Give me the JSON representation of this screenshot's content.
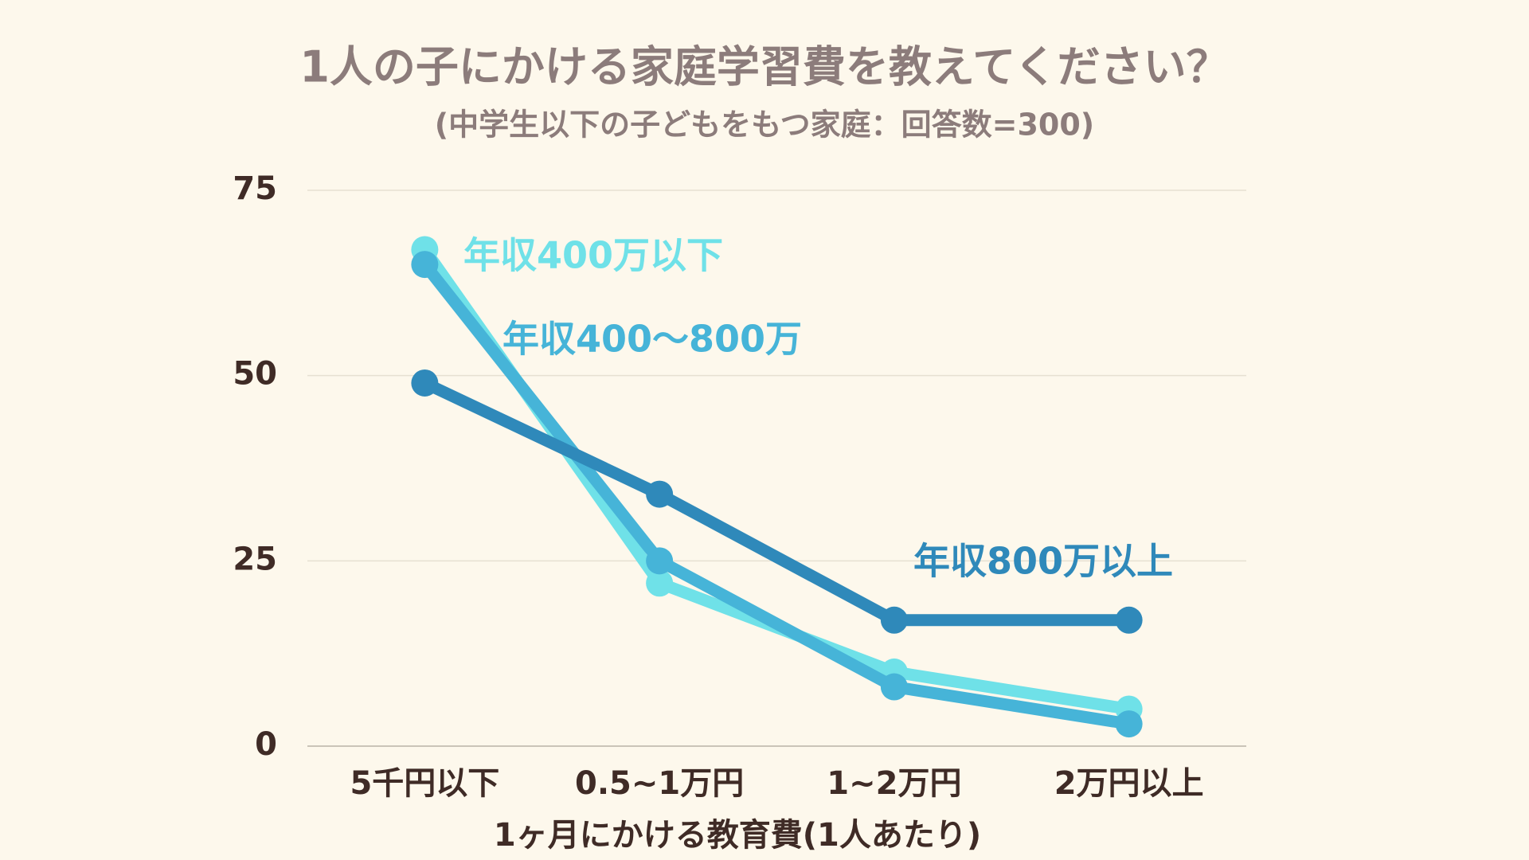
{
  "chart_data": {
    "type": "line",
    "title": "1人の子にかける家庭学習費を教えてください？",
    "subtitle": "(中学生以下の子どもをもつ家庭：回答数=300)",
    "x_label": "1ヶ月にかける教育費(1人あたり)",
    "categories": [
      "5千円以下",
      "0.5~1万円",
      "1~2万円",
      "2万円以上"
    ],
    "series": [
      {
        "name": "年収400万以下",
        "color": "#6fe1e8",
        "values": [
          67,
          22,
          10,
          5
        ]
      },
      {
        "name": "年収400〜800万",
        "color": "#46b4d8",
        "values": [
          65,
          25,
          8,
          3
        ]
      },
      {
        "name": "年収800万以上",
        "color": "#2f89ba",
        "values": [
          49,
          34,
          17,
          17
        ]
      }
    ],
    "ylim": [
      0,
      75
    ],
    "yticks": [
      0,
      25,
      50,
      75
    ],
    "grid": true
  }
}
